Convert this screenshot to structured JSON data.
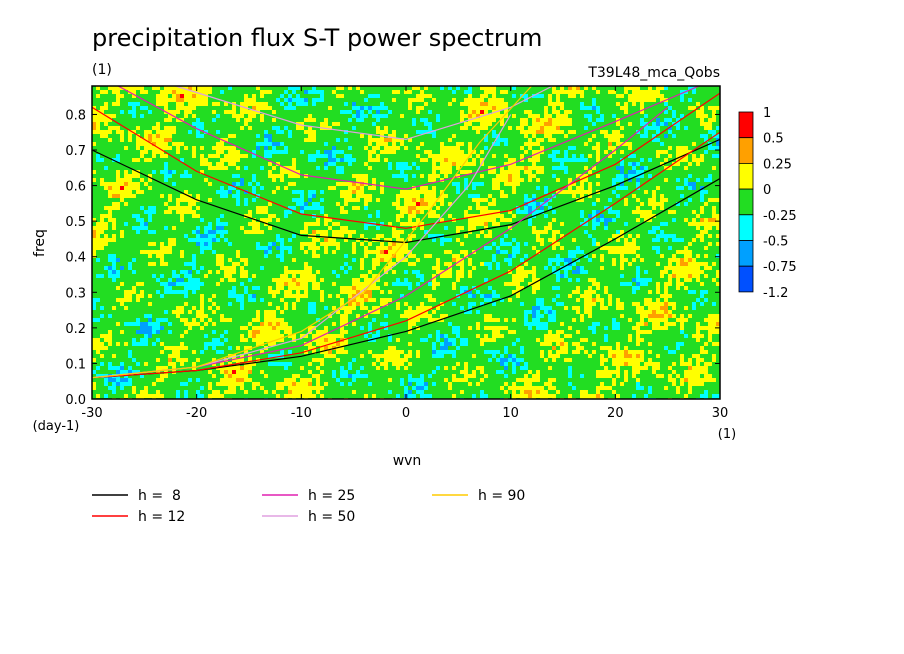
{
  "chart_data": {
    "type": "heatmap",
    "title": "precipitation flux S-T power spectrum",
    "subtitle_left": "(1)",
    "subtitle_right": "T39L48_mca_Qobs",
    "xlabel": "wvn",
    "ylabel": "freq",
    "x_unit": "(1)",
    "y_unit": "(day-1)",
    "xlim": [
      -30,
      30
    ],
    "ylim": [
      0,
      0.88
    ],
    "x_ticks": [
      "-30",
      "-20",
      "-10",
      "0",
      "10",
      "20",
      "30"
    ],
    "y_ticks": [
      "0.0",
      "0.1",
      "0.2",
      "0.3",
      "0.4",
      "0.5",
      "0.6",
      "0.7",
      "0.8"
    ],
    "colorbar": {
      "labels": [
        "1",
        "0.5",
        "0.25",
        "0",
        "-0.25",
        "-0.5",
        "-0.75",
        "-1.2"
      ],
      "colors": [
        "#ff0000",
        "#ffa000",
        "#ffff00",
        "#22dd22",
        "#00ffff",
        "#00a0ff",
        "#0050ff"
      ]
    },
    "series": [
      {
        "name": "h =  8",
        "color": "#000000"
      },
      {
        "name": "h = 12",
        "color": "#ff0000"
      },
      {
        "name": "h = 25",
        "color": "#e020b0"
      },
      {
        "name": "h = 50",
        "color": "#e0a0e0"
      },
      {
        "name": "h = 90",
        "color": "#ffcc00"
      }
    ],
    "dispersion_curves": [
      {
        "h": 8,
        "color": "#000000",
        "kind": "kelvin",
        "points": [
          [
            -30,
            0.06
          ],
          [
            -20,
            0.08
          ],
          [
            -10,
            0.12
          ],
          [
            0,
            0.19
          ],
          [
            10,
            0.29
          ],
          [
            20,
            0.45
          ],
          [
            30,
            0.62
          ]
        ]
      },
      {
        "h": 8,
        "color": "#000000",
        "kind": "ig1",
        "points": [
          [
            -30,
            0.7
          ],
          [
            -20,
            0.56
          ],
          [
            -10,
            0.46
          ],
          [
            0,
            0.44
          ],
          [
            10,
            0.49
          ],
          [
            20,
            0.6
          ],
          [
            30,
            0.73
          ]
        ]
      },
      {
        "h": 12,
        "color": "#ff0000",
        "kind": "kelvin",
        "points": [
          [
            -30,
            0.06
          ],
          [
            -20,
            0.08
          ],
          [
            -10,
            0.13
          ],
          [
            0,
            0.22
          ],
          [
            10,
            0.36
          ],
          [
            20,
            0.55
          ],
          [
            30,
            0.75
          ]
        ]
      },
      {
        "h": 12,
        "color": "#ff0000",
        "kind": "ig1",
        "points": [
          [
            -30,
            0.82
          ],
          [
            -20,
            0.64
          ],
          [
            -10,
            0.52
          ],
          [
            0,
            0.48
          ],
          [
            10,
            0.53
          ],
          [
            20,
            0.66
          ],
          [
            30,
            0.86
          ]
        ]
      },
      {
        "h": 25,
        "color": "#e020b0",
        "kind": "kelvin",
        "points": [
          [
            -30,
            0.06
          ],
          [
            -20,
            0.09
          ],
          [
            -10,
            0.15
          ],
          [
            0,
            0.29
          ],
          [
            10,
            0.48
          ],
          [
            20,
            0.7
          ],
          [
            25,
            0.82
          ]
        ]
      },
      {
        "h": 25,
        "color": "#e020b0",
        "kind": "ig1",
        "points": [
          [
            -30,
            0.92
          ],
          [
            -20,
            0.76
          ],
          [
            -10,
            0.63
          ],
          [
            0,
            0.59
          ],
          [
            10,
            0.66
          ],
          [
            20,
            0.78
          ],
          [
            28,
            0.88
          ]
        ]
      },
      {
        "h": 50,
        "color": "#e0a0e0",
        "kind": "kelvin",
        "points": [
          [
            -30,
            0.06
          ],
          [
            -20,
            0.09
          ],
          [
            -10,
            0.17
          ],
          [
            0,
            0.4
          ],
          [
            6,
            0.6
          ],
          [
            10,
            0.8
          ]
        ]
      },
      {
        "h": 50,
        "color": "#e0a0e0",
        "kind": "ig1",
        "points": [
          [
            -22,
            0.88
          ],
          [
            -10,
            0.77
          ],
          [
            0,
            0.73
          ],
          [
            10,
            0.82
          ],
          [
            14,
            0.88
          ]
        ]
      },
      {
        "h": 90,
        "color": "#ffcc00",
        "kind": "kelvin",
        "points": [
          [
            -30,
            0.06
          ],
          [
            -20,
            0.09
          ],
          [
            -10,
            0.19
          ],
          [
            -4,
            0.3
          ],
          [
            2,
            0.52
          ],
          [
            7,
            0.72
          ],
          [
            12,
            0.88
          ]
        ]
      }
    ]
  }
}
